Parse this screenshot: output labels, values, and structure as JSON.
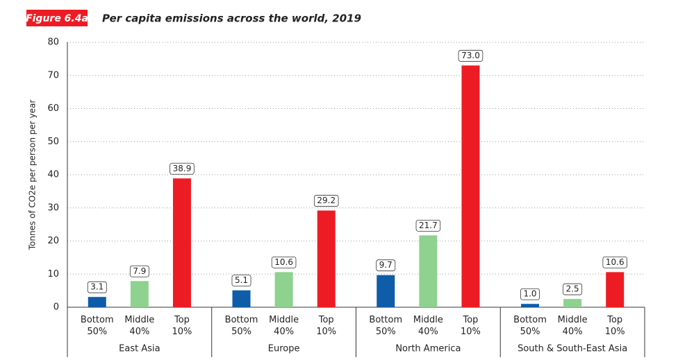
{
  "chart_data": {
    "type": "bar",
    "figure_label": "Figure 6.4a",
    "title": "Per capita emissions across the world, 2019",
    "ylabel": "Tonnes of CO2e per person per year",
    "categories": [
      "East Asia",
      "Europe",
      "North America",
      "South & South-East Asia"
    ],
    "series": [
      {
        "name": "Bottom 50%",
        "color": "#0f5ca8",
        "values": [
          3.1,
          5.1,
          9.7,
          1.0
        ],
        "value_labels": [
          "3.1",
          "5.1",
          "9.7",
          "1.0"
        ]
      },
      {
        "name": "Middle 40%",
        "color": "#8fd18f",
        "values": [
          7.9,
          10.6,
          21.7,
          2.5
        ],
        "value_labels": [
          "7.9",
          "10.6",
          "21.7",
          "2.5"
        ]
      },
      {
        "name": "Top 10%",
        "color": "#ed1c24",
        "values": [
          38.9,
          29.2,
          73.0,
          10.6
        ],
        "value_labels": [
          "38.9",
          "29.2",
          "73.0",
          "10.6"
        ]
      }
    ],
    "ylim": [
      0,
      80
    ],
    "yticks": [
      0,
      10,
      20,
      30,
      40,
      50,
      60,
      70,
      80
    ],
    "grid": true
  }
}
